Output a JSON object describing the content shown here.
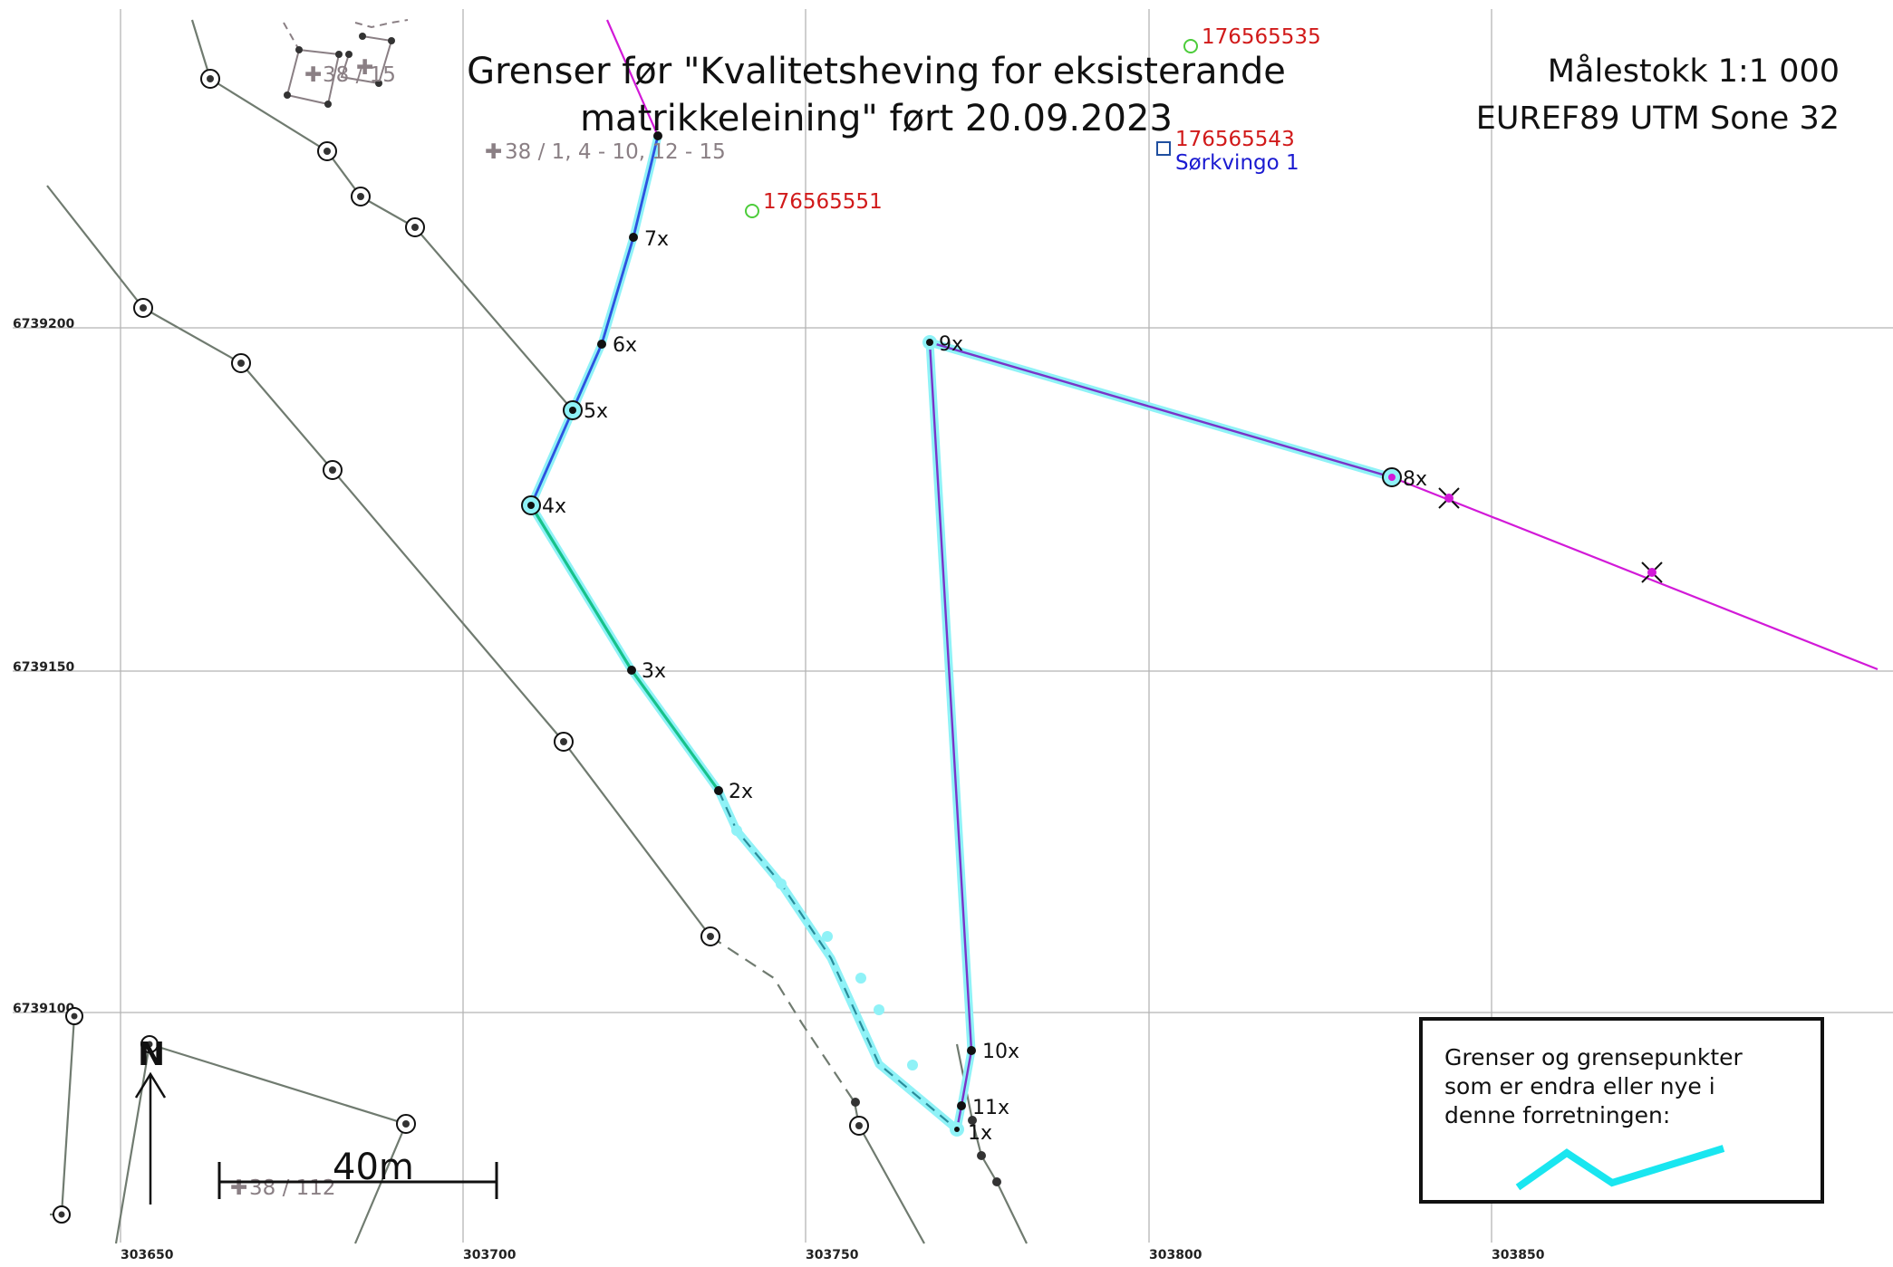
{
  "title_line1": "Grenser før \"Kvalitetsheving for eksisterande",
  "title_line2": "matrikkeleining\" ført 20.09.2023",
  "scale_text": "Målestokk 1:1 000",
  "crs_text": "EUREF89 UTM Sone 32",
  "grid": {
    "easting_labels": [
      "303650",
      "303700",
      "303750",
      "303800",
      "303850"
    ],
    "northing_labels": [
      "6739200",
      "6739150",
      "6739100"
    ]
  },
  "boundary_points": [
    "1x",
    "2x",
    "3x",
    "4x",
    "5x",
    "6x",
    "7x",
    "8x",
    "9x",
    "10x",
    "11x"
  ],
  "parcel_labels": {
    "top_left": "38 / 1, 4 - 10, 12 - 15",
    "top_small": "38 / 15",
    "bottom_left": "38 / 112"
  },
  "address_points": [
    {
      "id": "176565535",
      "color": "#4ccc3a"
    },
    {
      "id": "176565551",
      "color": "#4ccc3a"
    },
    {
      "id": "176565543",
      "color": "#1f4f9f"
    }
  ],
  "address_name": "Sørkvingo 1",
  "scalebar_label": "40m",
  "north_label": "N",
  "legend": {
    "lines": [
      "Grenser og grensepunkter",
      "som er endra eller nye i",
      "denne forretningen:"
    ],
    "swatch_color": "#19e6f0"
  },
  "colors": {
    "grid": "#b5b5b5",
    "existing_boundary": "#707b70",
    "changed_highlight": "#8ff2f7",
    "blue_boundary": "#2d53e0",
    "green_boundary": "#17c28a",
    "purple_boundary": "#7a34c8",
    "magenta_boundary": "#d21ad8"
  }
}
